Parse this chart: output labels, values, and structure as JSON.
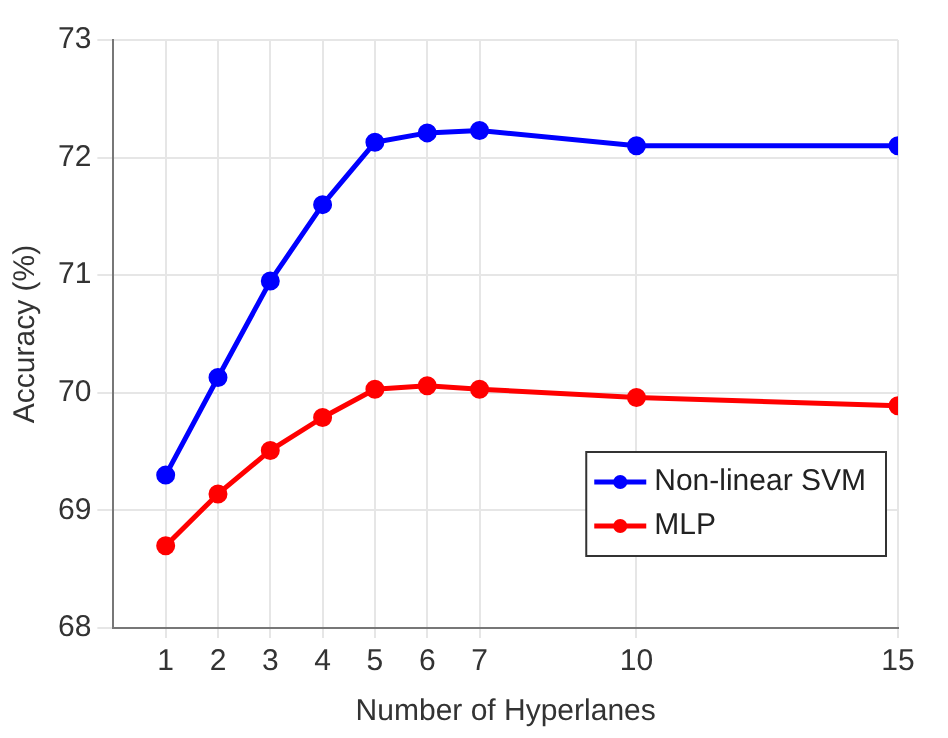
{
  "chart_data": {
    "type": "line",
    "xlabel": "Number of Hyperlanes",
    "ylabel": "Accuracy (%)",
    "x": [
      1,
      2,
      3,
      4,
      5,
      6,
      7,
      10,
      15
    ],
    "series": [
      {
        "name": "Non-linear SVM",
        "color": "#0000ff",
        "values": [
          69.3,
          70.13,
          70.95,
          71.6,
          72.13,
          72.21,
          72.23,
          72.1,
          72.1
        ]
      },
      {
        "name": "MLP",
        "color": "#ff0000",
        "values": [
          68.7,
          69.14,
          69.51,
          69.79,
          70.03,
          70.06,
          70.03,
          69.96,
          69.89
        ]
      }
    ],
    "xlim": [
      0,
      15
    ],
    "xticks": [
      1,
      2,
      3,
      4,
      5,
      6,
      7,
      10,
      15
    ],
    "ylim": [
      68,
      73
    ],
    "yticks": [
      68,
      69,
      70,
      71,
      72,
      73
    ],
    "grid": true,
    "legend": "bottom right",
    "marker": "circle",
    "line_style": "solid"
  }
}
